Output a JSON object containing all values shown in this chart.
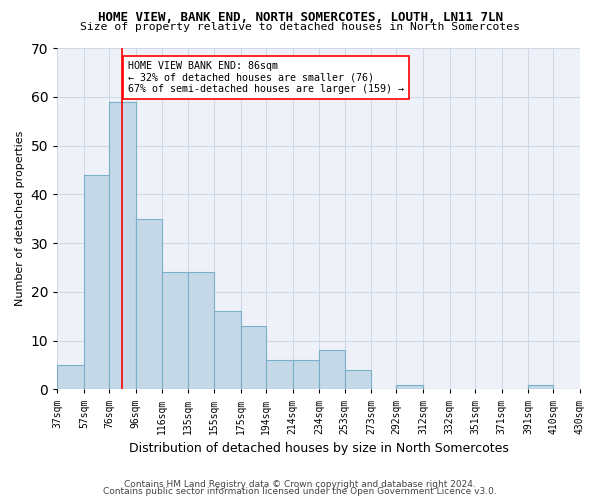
{
  "title1": "HOME VIEW, BANK END, NORTH SOMERCOTES, LOUTH, LN11 7LN",
  "title2": "Size of property relative to detached houses in North Somercotes",
  "xlabel": "Distribution of detached houses by size in North Somercotes",
  "ylabel": "Number of detached properties",
  "bar_edges": [
    37,
    57,
    76,
    96,
    116,
    135,
    155,
    175,
    194,
    214,
    234,
    253,
    273,
    292,
    312,
    332,
    351,
    371,
    391,
    410,
    430
  ],
  "bar_heights": [
    5,
    44,
    59,
    35,
    24,
    24,
    16,
    13,
    6,
    6,
    8,
    4,
    0,
    1,
    0,
    0,
    0,
    0,
    1,
    0
  ],
  "bar_color": "#c5d8e8",
  "bar_edge_color": "#7aafc8",
  "property_line_x": 86,
  "property_line_color": "red",
  "annotation_text": "HOME VIEW BANK END: 86sqm\n← 32% of detached houses are smaller (76)\n67% of semi-detached houses are larger (159) →",
  "annotation_box_color": "white",
  "annotation_box_edge": "red",
  "ylim": [
    0,
    70
  ],
  "yticks": [
    0,
    10,
    20,
    30,
    40,
    50,
    60,
    70
  ],
  "tick_labels": [
    "37sqm",
    "57sqm",
    "76sqm",
    "96sqm",
    "116sqm",
    "135sqm",
    "155sqm",
    "175sqm",
    "194sqm",
    "214sqm",
    "234sqm",
    "253sqm",
    "273sqm",
    "292sqm",
    "312sqm",
    "332sqm",
    "351sqm",
    "371sqm",
    "391sqm",
    "410sqm",
    "430sqm"
  ],
  "grid_color": "#d0d8e8",
  "background_color": "#eef2f8",
  "footer1": "Contains HM Land Registry data © Crown copyright and database right 2024.",
  "footer2": "Contains public sector information licensed under the Open Government Licence v3.0."
}
